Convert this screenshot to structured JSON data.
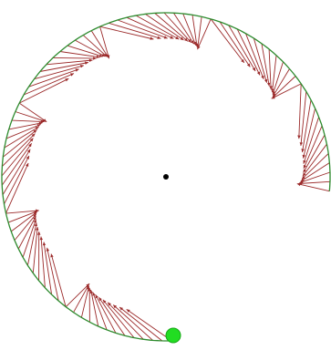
{
  "diagram": {
    "type": "circular-trajectory-with-vectors",
    "colors": {
      "background": "#ffffff",
      "path": "#2e8b2e",
      "vectors": "#9b2a2a",
      "center": "#000000",
      "marker": "#22dd22"
    },
    "path": {
      "start_angle_deg": 85,
      "end_angle_deg": 360,
      "direction": "clockwise-from-bottom",
      "shape": "arc"
    },
    "vector_clusters": 7,
    "vectors_per_cluster": 9,
    "marker_label": "",
    "center_label": ""
  }
}
